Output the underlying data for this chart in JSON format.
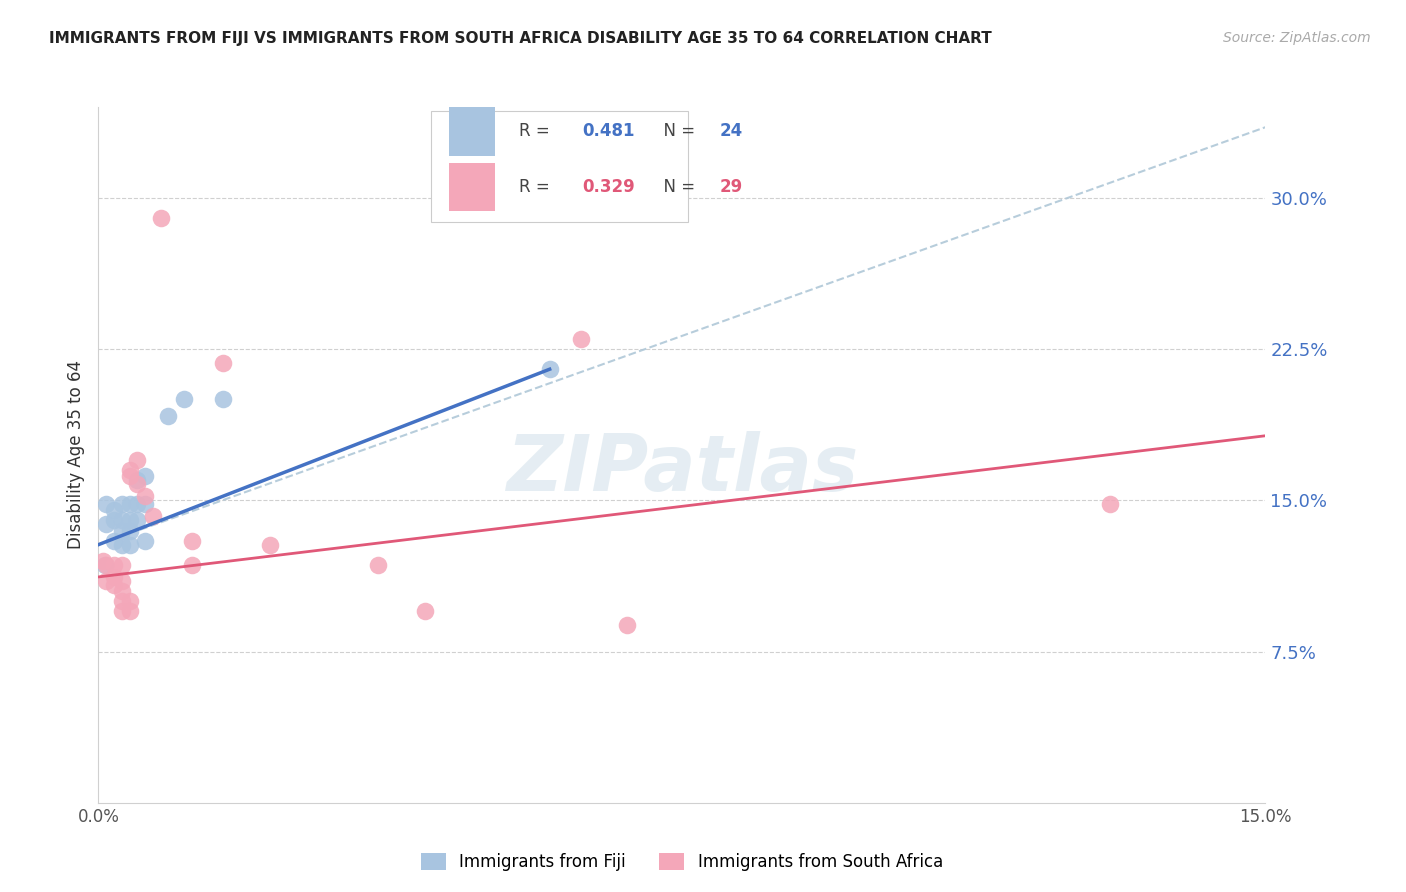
{
  "title": "IMMIGRANTS FROM FIJI VS IMMIGRANTS FROM SOUTH AFRICA DISABILITY AGE 35 TO 64 CORRELATION CHART",
  "source": "Source: ZipAtlas.com",
  "ylabel": "Disability Age 35 to 64",
  "xlim": [
    0.0,
    0.15
  ],
  "ylim": [
    0.0,
    0.345
  ],
  "fiji_color": "#a8c4e0",
  "sa_color": "#f4a7b9",
  "fiji_line_color": "#4472c4",
  "sa_line_color": "#e05878",
  "dashed_line_color": "#b0c8d8",
  "watermark": "ZIPatlas",
  "ytick_positions_right": [
    0.075,
    0.15,
    0.225,
    0.3
  ],
  "ytick_labels_right": [
    "7.5%",
    "15.0%",
    "22.5%",
    "30.0%"
  ],
  "fiji_scatter": [
    [
      0.0008,
      0.118
    ],
    [
      0.001,
      0.148
    ],
    [
      0.001,
      0.138
    ],
    [
      0.002,
      0.145
    ],
    [
      0.002,
      0.14
    ],
    [
      0.002,
      0.13
    ],
    [
      0.003,
      0.148
    ],
    [
      0.003,
      0.14
    ],
    [
      0.003,
      0.135
    ],
    [
      0.003,
      0.128
    ],
    [
      0.004,
      0.148
    ],
    [
      0.004,
      0.14
    ],
    [
      0.004,
      0.135
    ],
    [
      0.004,
      0.128
    ],
    [
      0.005,
      0.16
    ],
    [
      0.005,
      0.148
    ],
    [
      0.005,
      0.14
    ],
    [
      0.006,
      0.162
    ],
    [
      0.006,
      0.148
    ],
    [
      0.006,
      0.13
    ],
    [
      0.009,
      0.192
    ],
    [
      0.011,
      0.2
    ],
    [
      0.016,
      0.2
    ],
    [
      0.058,
      0.215
    ]
  ],
  "sa_scatter": [
    [
      0.0006,
      0.12
    ],
    [
      0.001,
      0.118
    ],
    [
      0.001,
      0.11
    ],
    [
      0.002,
      0.118
    ],
    [
      0.002,
      0.112
    ],
    [
      0.002,
      0.108
    ],
    [
      0.003,
      0.118
    ],
    [
      0.003,
      0.11
    ],
    [
      0.003,
      0.105
    ],
    [
      0.003,
      0.1
    ],
    [
      0.003,
      0.095
    ],
    [
      0.004,
      0.165
    ],
    [
      0.004,
      0.162
    ],
    [
      0.004,
      0.1
    ],
    [
      0.004,
      0.095
    ],
    [
      0.005,
      0.17
    ],
    [
      0.005,
      0.158
    ],
    [
      0.006,
      0.152
    ],
    [
      0.007,
      0.142
    ],
    [
      0.008,
      0.29
    ],
    [
      0.012,
      0.13
    ],
    [
      0.012,
      0.118
    ],
    [
      0.016,
      0.218
    ],
    [
      0.022,
      0.128
    ],
    [
      0.036,
      0.118
    ],
    [
      0.042,
      0.095
    ],
    [
      0.062,
      0.23
    ],
    [
      0.068,
      0.088
    ],
    [
      0.13,
      0.148
    ]
  ],
  "fiji_line_x": [
    0.0,
    0.058
  ],
  "fiji_line_y": [
    0.128,
    0.215
  ],
  "sa_line_x": [
    0.0,
    0.15
  ],
  "sa_line_y": [
    0.112,
    0.182
  ],
  "dashed_line_x": [
    0.0,
    0.15
  ],
  "dashed_line_y": [
    0.128,
    0.335
  ]
}
